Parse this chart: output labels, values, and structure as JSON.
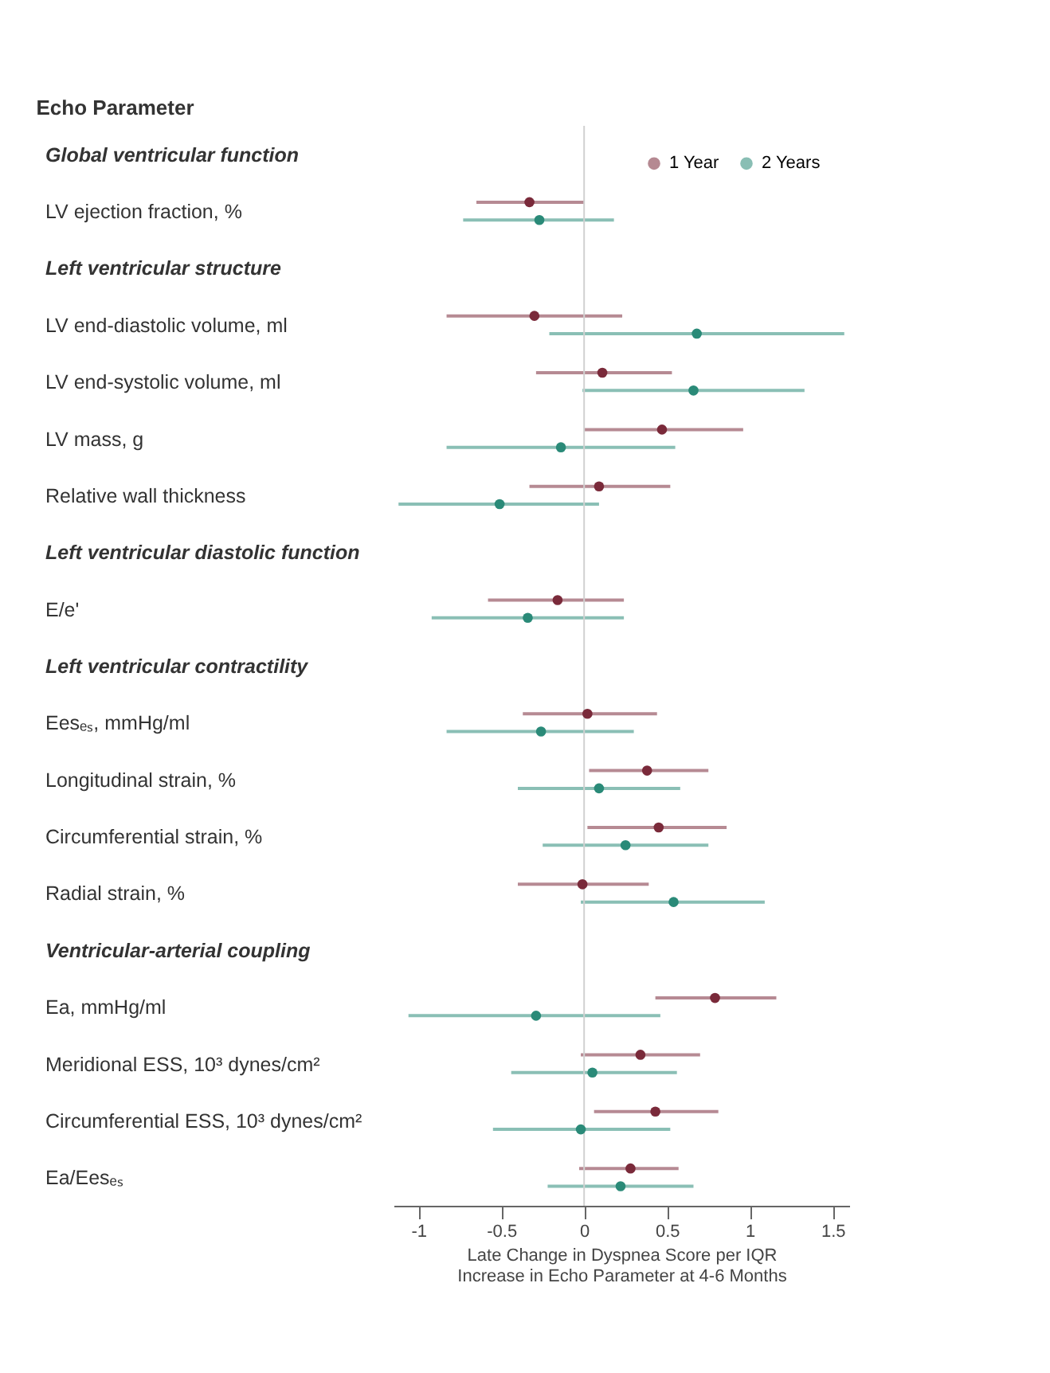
{
  "chart_data": {
    "type": "scatter",
    "orientation": "horizontal",
    "annotations": [
      "Echo Parameter"
    ],
    "xlabel": "Late Change in Dyspnea Score per IQR Increase in Echo Parameter at 4-6 Months",
    "categories": [
      "Global ventricular function",
      "LV ejection fraction, %",
      "Left ventricular structure",
      "LV end-diastolic volume, ml",
      "LV end-systolic volume, ml",
      "LV mass, g",
      "Relative wall thickness",
      "Left ventricular diastolic function",
      "E/e'",
      "Left ventricular contractility",
      "Eesₑₛ, mmHg/ml",
      "Longitudinal strain, %",
      "Circumferential strain, %",
      "Radial strain, %",
      "Ventricular-arterial coupling",
      "Ea, mmHg/ml",
      "Meridional ESS, 10³ dynes/cm²",
      "Circumferential ESS, 10³ dynes/cm²",
      "Ea/Eesₑₛ"
    ],
    "series": [
      {
        "name": "1 Year",
        "color": "#7a2a3a",
        "values": [
          null,
          -0.33,
          null,
          -0.3,
          0.11,
          0.47,
          0.09,
          null,
          -0.16,
          null,
          0.02,
          0.38,
          0.45,
          -0.01,
          null,
          0.79,
          0.34,
          0.43,
          0.28
        ],
        "errors": [
          null,
          [
            -0.65,
            0.0
          ],
          null,
          [
            -0.83,
            0.23
          ],
          [
            -0.29,
            0.53
          ],
          [
            0.0,
            0.96
          ],
          [
            -0.33,
            0.52
          ],
          null,
          [
            -0.58,
            0.24
          ],
          null,
          [
            -0.37,
            0.44
          ],
          [
            0.03,
            0.75
          ],
          [
            0.02,
            0.86
          ],
          [
            -0.4,
            0.39
          ],
          null,
          [
            0.43,
            1.16
          ],
          [
            -0.02,
            0.7
          ],
          [
            0.06,
            0.81
          ],
          [
            -0.03,
            0.57
          ]
        ]
      },
      {
        "name": "2 Years",
        "color": "#2a8a78",
        "values": [
          null,
          -0.27,
          null,
          0.68,
          0.66,
          -0.14,
          -0.51,
          null,
          -0.34,
          null,
          -0.26,
          0.09,
          0.25,
          0.54,
          null,
          -0.29,
          0.05,
          -0.02,
          0.22
        ],
        "errors": [
          null,
          [
            -0.73,
            0.18
          ],
          null,
          [
            -0.21,
            1.57
          ],
          [
            -0.01,
            1.33
          ],
          [
            -0.83,
            0.55
          ],
          [
            -1.12,
            0.09
          ],
          null,
          [
            -0.92,
            0.24
          ],
          null,
          [
            -0.83,
            0.3
          ],
          [
            -0.4,
            0.58
          ],
          [
            -0.25,
            0.75
          ],
          [
            -0.02,
            1.09
          ],
          null,
          [
            -1.06,
            0.46
          ],
          [
            -0.44,
            0.56
          ],
          [
            -0.55,
            0.52
          ],
          [
            -0.22,
            0.66
          ]
        ]
      }
    ],
    "xlim": [
      -1.15,
      1.6
    ],
    "xticks": [
      -1,
      -0.5,
      0,
      0.5,
      1,
      1.5
    ],
    "ref_lines": [
      {
        "axis": "x",
        "value": 0,
        "label": null,
        "color": "#d0d0d0"
      }
    ],
    "legend": "top right",
    "grid": false,
    "marker": "circle"
  }
}
